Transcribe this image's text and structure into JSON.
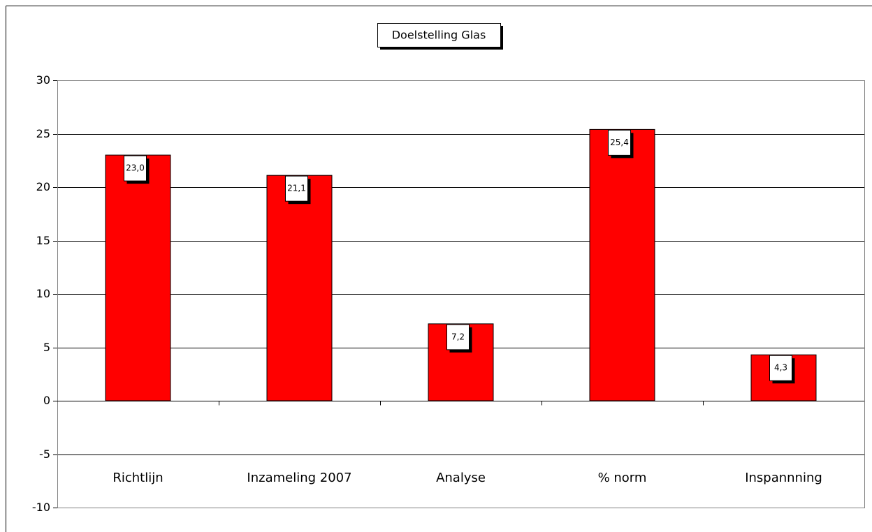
{
  "chart_data": {
    "type": "bar",
    "title": "Doelstelling Glas",
    "categories": [
      "Richtlijn",
      "Inzameling 2007",
      "Analyse",
      "% norm",
      "Inspannning"
    ],
    "values": [
      23.0,
      21.1,
      7.2,
      25.4,
      4.3
    ],
    "value_labels": [
      "23,0",
      "21,1",
      "7,2",
      "25,4",
      "4,3"
    ],
    "color": "#ff0000",
    "ylim": [
      -10,
      30
    ],
    "yticks": [
      -10,
      -5,
      0,
      5,
      10,
      15,
      20,
      25,
      30
    ],
    "grid": true
  }
}
